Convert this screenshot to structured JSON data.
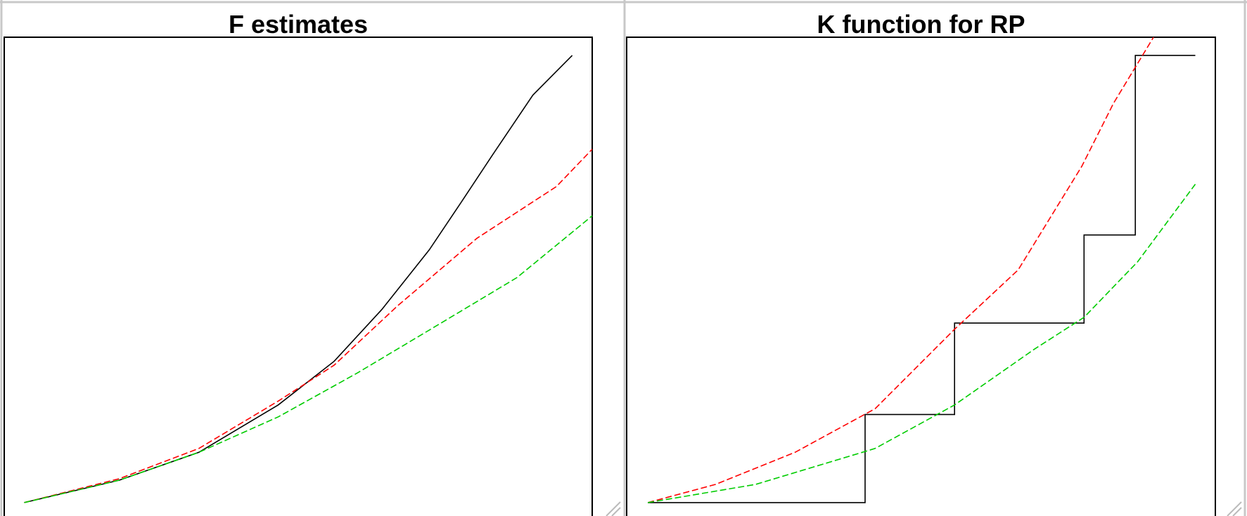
{
  "chart_data": [
    {
      "type": "line",
      "title": "F estimates",
      "xlim": [
        0,
        1
      ],
      "ylim": [
        0,
        1
      ],
      "series": [
        {
          "color": "#000000",
          "linestyle": "solid",
          "x": [
            0.034,
            0.196,
            0.331,
            0.466,
            0.561,
            0.642,
            0.723,
            0.777,
            0.831,
            0.899,
            0.966
          ],
          "values": [
            0.028,
            0.075,
            0.133,
            0.232,
            0.323,
            0.431,
            0.556,
            0.655,
            0.755,
            0.879,
            0.962
          ]
        },
        {
          "color": "#ff0000",
          "linestyle": "dashed",
          "x": [
            0.034,
            0.196,
            0.331,
            0.466,
            0.561,
            0.669,
            0.804,
            0.939,
            1.0
          ],
          "values": [
            0.028,
            0.078,
            0.141,
            0.24,
            0.315,
            0.439,
            0.58,
            0.688,
            0.766
          ]
        },
        {
          "color": "#00cc00",
          "linestyle": "dashed",
          "x": [
            0.034,
            0.196,
            0.331,
            0.466,
            0.601,
            0.736,
            0.872,
            1.0
          ],
          "values": [
            0.028,
            0.075,
            0.133,
            0.207,
            0.299,
            0.398,
            0.498,
            0.627
          ]
        }
      ]
    },
    {
      "type": "line",
      "title": "K function for RP",
      "xlim": [
        0,
        1
      ],
      "ylim": [
        0,
        1
      ],
      "series": [
        {
          "color": "#000000",
          "linestyle": "solid",
          "x": [
            0.036,
            0.405,
            0.405,
            0.557,
            0.557,
            0.777,
            0.777,
            0.864,
            0.864,
            0.966
          ],
          "values": [
            0.028,
            0.028,
            0.212,
            0.212,
            0.403,
            0.403,
            0.587,
            0.587,
            0.962,
            0.962
          ]
        },
        {
          "color": "#ff0000",
          "linestyle": "dashed",
          "x": [
            0.036,
            0.151,
            0.286,
            0.422,
            0.557,
            0.665,
            0.773,
            0.827,
            0.895
          ],
          "values": [
            0.028,
            0.066,
            0.133,
            0.224,
            0.39,
            0.514,
            0.73,
            0.862,
            1.0
          ]
        },
        {
          "color": "#00cc00",
          "linestyle": "dashed",
          "x": [
            0.036,
            0.219,
            0.422,
            0.557,
            0.692,
            0.777,
            0.868,
            0.966
          ],
          "values": [
            0.028,
            0.066,
            0.141,
            0.232,
            0.348,
            0.415,
            0.531,
            0.693
          ]
        }
      ]
    }
  ]
}
